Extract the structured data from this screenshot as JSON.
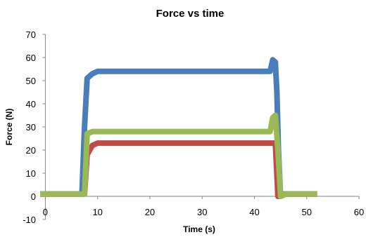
{
  "chart_data": {
    "type": "line",
    "title": "Force vs time",
    "xlabel": "Time (s)",
    "ylabel": "Force (N)",
    "xlim": [
      -1,
      60
    ],
    "ylim": [
      -10,
      70
    ],
    "xticks": [
      0,
      10,
      20,
      30,
      40,
      50,
      60
    ],
    "yticks": [
      -10,
      0,
      10,
      20,
      30,
      40,
      50,
      60,
      70
    ],
    "xtick_labels": [
      "0",
      "10",
      "20",
      "30",
      "40",
      "50",
      "60"
    ],
    "ytick_labels": [
      "-10",
      "0",
      "10",
      "20",
      "30",
      "40",
      "50",
      "60",
      "70"
    ],
    "legend": "none",
    "grid": false,
    "series": [
      {
        "color": "#4a7ebb",
        "x": [
          -1,
          0,
          2,
          4,
          6,
          7,
          7.5,
          8,
          9,
          10,
          15,
          20,
          25,
          30,
          35,
          40,
          43,
          43.5,
          44,
          44.3,
          44.6,
          45,
          45.5,
          46,
          48,
          50,
          52
        ],
        "y": [
          1,
          1,
          1,
          1,
          1,
          1,
          30,
          51,
          53,
          54,
          54,
          54,
          54,
          54,
          54,
          54,
          54,
          59,
          58,
          45,
          20,
          0,
          1,
          1,
          1,
          1,
          1
        ]
      },
      {
        "color": "#be4b48",
        "x": [
          -1,
          0,
          2,
          4,
          6,
          7,
          7.5,
          8,
          9,
          10,
          15,
          20,
          25,
          30,
          35,
          40,
          43,
          43.5,
          44,
          44.5,
          45,
          46,
          48,
          50,
          52
        ],
        "y": [
          1,
          1,
          1,
          1,
          1,
          1,
          1,
          18,
          22,
          23,
          23,
          23,
          23,
          23,
          23,
          23,
          23,
          23,
          23,
          0,
          0,
          1,
          1,
          1,
          1
        ]
      },
      {
        "color": "#98b954",
        "x": [
          -1,
          0,
          2,
          4,
          6,
          7,
          7.5,
          8,
          9,
          10,
          15,
          20,
          25,
          30,
          35,
          40,
          43,
          43.5,
          44,
          44.5,
          45,
          46,
          48,
          50,
          52
        ],
        "y": [
          1,
          1,
          1,
          1,
          1,
          1,
          1,
          27,
          28,
          28,
          28,
          28,
          28,
          28,
          28,
          28,
          28,
          34,
          35,
          20,
          0,
          1,
          1,
          1,
          1
        ]
      }
    ]
  }
}
